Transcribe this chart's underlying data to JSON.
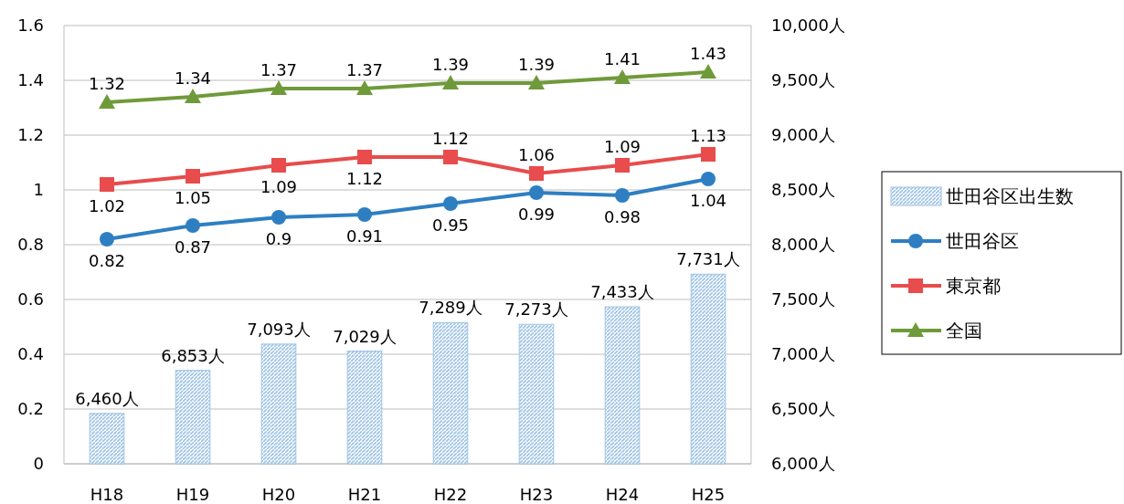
{
  "chart_data": {
    "type": "bar",
    "categories": [
      "H18",
      "H19",
      "H20",
      "H21",
      "H22",
      "H23",
      "H24",
      "H25"
    ],
    "series": [
      {
        "name": "世田谷区出生数",
        "axis": "y2",
        "color": "#9dc3e6",
        "values": [
          6460,
          6853,
          7093,
          7029,
          7289,
          7273,
          7433,
          7731
        ],
        "value_labels": [
          "6,460人",
          "6,853人",
          "7,093人",
          "7,029人",
          "7,289人",
          "7,273人",
          "7,433人",
          "7,731人"
        ]
      },
      {
        "name": "世田谷区",
        "type": "line",
        "color": "#2e7fc2",
        "marker": "circle",
        "values": [
          0.82,
          0.87,
          0.9,
          0.91,
          0.95,
          0.99,
          0.98,
          1.04
        ],
        "value_labels": [
          "0.82",
          "0.87",
          "0.9",
          "0.91",
          "0.95",
          "0.99",
          "0.98",
          "1.04"
        ]
      },
      {
        "name": "東京都",
        "type": "line",
        "color": "#e84c4c",
        "marker": "square",
        "values": [
          1.02,
          1.05,
          1.09,
          1.12,
          1.12,
          1.06,
          1.09,
          1.13
        ],
        "value_labels": [
          "1.02",
          "1.05",
          "1.09",
          "1.12",
          "1.12",
          "1.06",
          "1.09",
          "1.13"
        ]
      },
      {
        "name": "全国",
        "type": "line",
        "color": "#6f9a3a",
        "marker": "triangle",
        "values": [
          1.32,
          1.34,
          1.37,
          1.37,
          1.39,
          1.39,
          1.41,
          1.43
        ],
        "value_labels": [
          "1.32",
          "1.34",
          "1.37",
          "1.37",
          "1.39",
          "1.39",
          "1.41",
          "1.43"
        ]
      }
    ],
    "ylim": [
      0,
      1.6
    ],
    "yticks": [
      0,
      0.2,
      0.4,
      0.6,
      0.8,
      1,
      1.2,
      1.4,
      1.6
    ],
    "y2lim": [
      6000,
      10000
    ],
    "y2ticks": [
      {
        "value": 6000,
        "label": "6,000人"
      },
      {
        "value": 6500,
        "label": "6,500人"
      },
      {
        "value": 7000,
        "label": "7,000人"
      },
      {
        "value": 7500,
        "label": "7,500人"
      },
      {
        "value": 8000,
        "label": "8,000人"
      },
      {
        "value": 8500,
        "label": "8,500人"
      },
      {
        "value": 9000,
        "label": "9,000人"
      },
      {
        "value": 9500,
        "label": "9,500人"
      },
      {
        "value": 10000,
        "label": "10,000人"
      }
    ],
    "grid": "y",
    "legend": "right",
    "line_style": "solid"
  }
}
